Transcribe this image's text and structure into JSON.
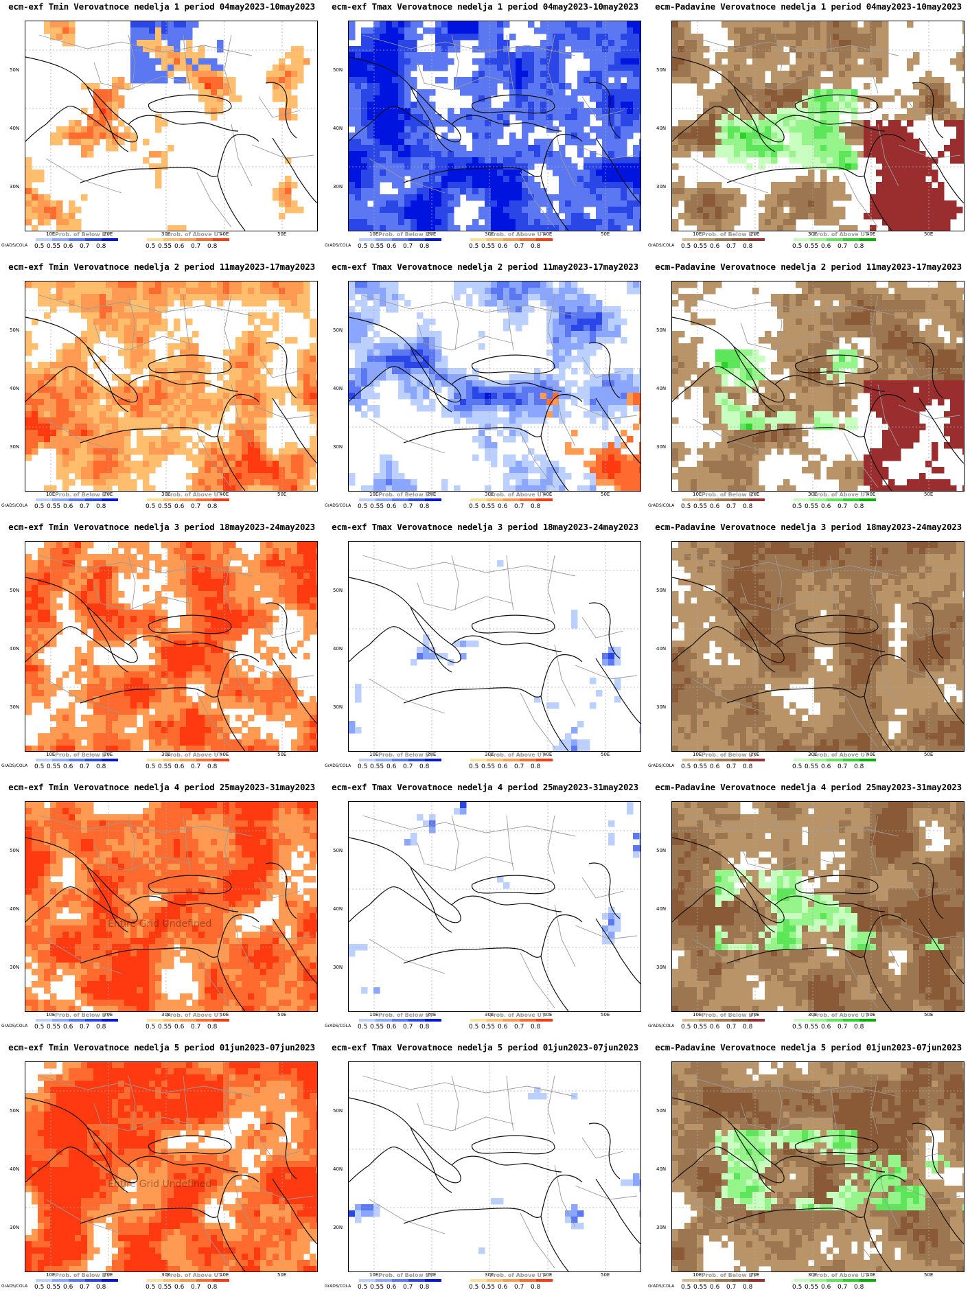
{
  "panels": [
    {
      "title": "ecm-exf Tmin Verovatnoce nedelja 1 period 04may2023-10may2023",
      "kind": "tmin",
      "week": 1
    },
    {
      "title": "ecm-exf Tmax Verovatnoce nedelja 1 period 04may2023-10may2023",
      "kind": "tmax",
      "week": 1
    },
    {
      "title": "ecm-Padavine Verovatnoce nedelja 1 period 04may2023-10may2023",
      "kind": "prec",
      "week": 1
    },
    {
      "title": "ecm-exf Tmin Verovatnoce nedelja 2 period 11may2023-17may2023",
      "kind": "tmin",
      "week": 2
    },
    {
      "title": "ecm-exf Tmax Verovatnoce nedelja 2 period 11may2023-17may2023",
      "kind": "tmax",
      "week": 2
    },
    {
      "title": "ecm-Padavine Verovatnoce nedelja 2 period 11may2023-17may2023",
      "kind": "prec",
      "week": 2
    },
    {
      "title": "ecm-exf Tmin Verovatnoce nedelja 3 period 18may2023-24may2023",
      "kind": "tmin",
      "week": 3
    },
    {
      "title": "ecm-exf Tmax Verovatnoce nedelja 3 period 18may2023-24may2023",
      "kind": "tmax",
      "week": 3
    },
    {
      "title": "ecm-Padavine Verovatnoce nedelja 3 period 18may2023-24may2023",
      "kind": "prec",
      "week": 3
    },
    {
      "title": "ecm-exf Tmin Verovatnoce nedelja 4 period 25may2023-31may2023",
      "kind": "tmin",
      "week": 4,
      "watermark": "Entire Grid Undefined"
    },
    {
      "title": "ecm-exf Tmax Verovatnoce nedelja 4 period 25may2023-31may2023",
      "kind": "tmax",
      "week": 4
    },
    {
      "title": "ecm-Padavine Verovatnoce nedelja 4 period 25may2023-31may2023",
      "kind": "prec",
      "week": 4
    },
    {
      "title": "ecm-exf Tmin Verovatnoce nedelja 5 period 01jun2023-07jun2023",
      "kind": "tmin",
      "week": 5,
      "watermark": "Entire Grid Undefined"
    },
    {
      "title": "ecm-exf Tmax Verovatnoce nedelja 5 period 01jun2023-07jun2023",
      "kind": "tmax",
      "week": 5
    },
    {
      "title": "ecm-Padavine Verovatnoce nedelja 5 period 01jun2023-07jun2023",
      "kind": "prec",
      "week": 5
    }
  ],
  "axes": {
    "lat_labels": [
      "50N",
      "40N",
      "30N"
    ],
    "lon_labels": [
      "10E",
      "20E",
      "30E",
      "40E",
      "50E"
    ]
  },
  "legend": {
    "below_title": "Prob. of Below BT",
    "above_title": "Prob. of Above UT",
    "below_ticks": [
      "0.5",
      "0.55",
      "0.6",
      "0.7",
      "0.8"
    ],
    "above_ticks": [
      "0.5",
      "0.55",
      "0.6",
      "0.7",
      "0.8"
    ],
    "credit": "GrADS/COLA"
  },
  "colors": {
    "blue": [
      "#bcd0ff",
      "#8aa6ff",
      "#5b78f2",
      "#2a46e6",
      "#0014e0"
    ],
    "red": [
      "#ffe09a",
      "#ffbe6e",
      "#ff9a52",
      "#ff6a2e",
      "#ff3a10"
    ],
    "brown": [
      "#d8b890",
      "#b89468",
      "#9c7650",
      "#8a5a36",
      "#9a2e2e"
    ],
    "green": [
      "#c8ffc0",
      "#96f58a",
      "#5ee65a",
      "#2ad22a",
      "#00b400"
    ]
  }
}
